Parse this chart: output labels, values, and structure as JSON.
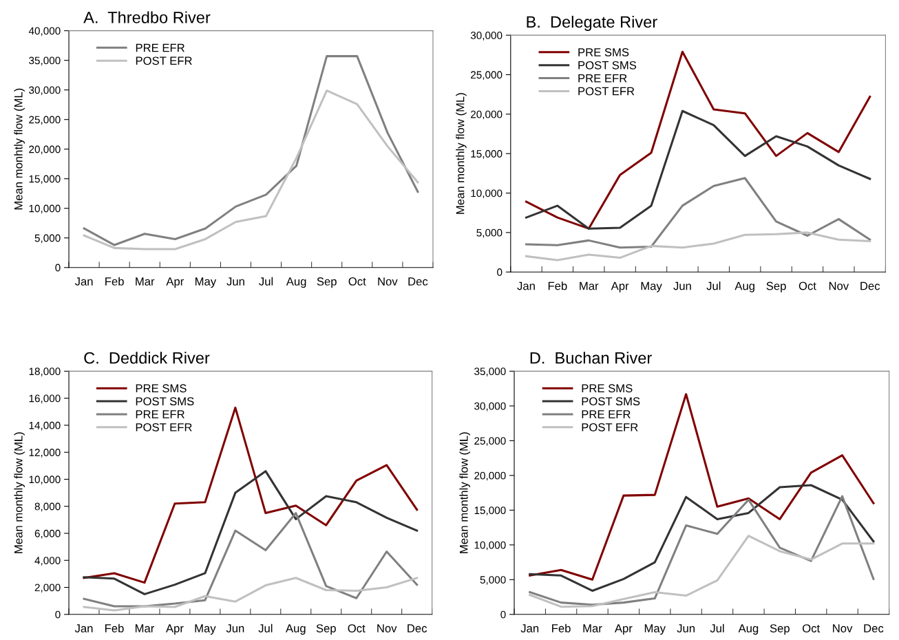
{
  "chart_data": [
    {
      "type": "line",
      "title": "A.  Thredbo River",
      "ylabel": "Mean monhtly flow (ML)",
      "categories": [
        "Jan",
        "Feb",
        "Mar",
        "Apr",
        "May",
        "Jun",
        "Jul",
        "Aug",
        "Sep",
        "Oct",
        "Nov",
        "Dec"
      ],
      "series": [
        {
          "name": "PRE EFR",
          "color": "#808080",
          "values": [
            6600,
            3800,
            5700,
            4800,
            6600,
            10300,
            12300,
            17200,
            35700,
            35700,
            22800,
            12800
          ]
        },
        {
          "name": "POST EFR",
          "color": "#c0c0c0",
          "values": [
            5400,
            3300,
            3100,
            3100,
            4800,
            7700,
            8700,
            18500,
            29900,
            27600,
            20500,
            14400
          ]
        }
      ],
      "ylim": [
        0,
        40000
      ],
      "yticks": [
        0,
        {
          "value": 5000,
          "label": "5,000"
        },
        {
          "value": 10000,
          "label": "10,000"
        },
        {
          "value": 15000,
          "label": "15,000"
        },
        {
          "value": 20000,
          "label": "20,000"
        },
        {
          "value": 25000,
          "label": "25,000"
        },
        {
          "value": 30000,
          "label": "30,000"
        },
        {
          "value": 35000,
          "label": "35,000"
        },
        {
          "value": 40000,
          "label": "40,000"
        }
      ],
      "grid": false,
      "legend": "top left",
      "marker": "none",
      "line_style": "solid"
    },
    {
      "type": "line",
      "title": "B.  Delegate River",
      "ylabel": "Mean monthly flow (ML)",
      "categories": [
        "Jan",
        "Feb",
        "Mar",
        "Apr",
        "May",
        "Jun",
        "Jul",
        "Aug",
        "Sep",
        "Oct",
        "Nov",
        "Dec"
      ],
      "series": [
        {
          "name": "PRE SMS",
          "color": "#800000",
          "values": [
            8900,
            6900,
            5500,
            12300,
            15100,
            27900,
            20600,
            20100,
            14700,
            17600,
            15200,
            22200
          ]
        },
        {
          "name": "POST SMS",
          "color": "#333333",
          "values": [
            6900,
            8400,
            5500,
            5600,
            8400,
            20400,
            18600,
            14700,
            17200,
            15900,
            13500,
            11800
          ]
        },
        {
          "name": "PRE EFR",
          "color": "#808080",
          "values": [
            3500,
            3400,
            4000,
            3100,
            3200,
            8400,
            10900,
            11900,
            6400,
            4600,
            6700,
            4100
          ]
        },
        {
          "name": "POST EFR",
          "color": "#c0c0c0",
          "values": [
            2000,
            1500,
            2200,
            1800,
            3300,
            3100,
            3600,
            4700,
            4800,
            5000,
            4100,
            3900
          ]
        }
      ],
      "ylim": [
        0,
        30000
      ],
      "yticks": [
        0,
        {
          "value": 5000,
          "label": "5,000"
        },
        {
          "value": 10000,
          "label": "10,000"
        },
        {
          "value": 15000,
          "label": "15,000"
        },
        {
          "value": 20000,
          "label": "20,000"
        },
        {
          "value": 25000,
          "label": "25,000"
        },
        {
          "value": 30000,
          "label": "30,000"
        }
      ],
      "grid": false,
      "legend": "top left",
      "marker": "none",
      "line_style": "solid"
    },
    {
      "type": "line",
      "title": "C.  Deddick River",
      "ylabel": "Mean monthly flow (ML)",
      "categories": [
        "Jan",
        "Feb",
        "Mar",
        "Apr",
        "May",
        "Jun",
        "Jul",
        "Aug",
        "Sep",
        "Oct",
        "Nov",
        "Dec"
      ],
      "series": [
        {
          "name": "PRE SMS",
          "color": "#800000",
          "values": [
            2700,
            3050,
            2350,
            8200,
            8300,
            15300,
            7500,
            8050,
            6600,
            9900,
            11050,
            7750
          ]
        },
        {
          "name": "POST SMS",
          "color": "#333333",
          "values": [
            2750,
            2650,
            1500,
            2200,
            3050,
            9000,
            10600,
            7050,
            8750,
            8300,
            7150,
            6200
          ]
        },
        {
          "name": "PRE EFR",
          "color": "#808080",
          "values": [
            1150,
            600,
            600,
            800,
            1050,
            6200,
            4750,
            7500,
            2100,
            1200,
            4650,
            2200
          ]
        },
        {
          "name": "POST EFR",
          "color": "#c0c0c0",
          "values": [
            550,
            300,
            600,
            550,
            1350,
            950,
            2150,
            2700,
            1800,
            1750,
            2000,
            2700
          ]
        }
      ],
      "ylim": [
        0,
        18000
      ],
      "yticks": [
        0,
        {
          "value": 2000,
          "label": "2,000"
        },
        {
          "value": 4000,
          "label": "4,000"
        },
        {
          "value": 6000,
          "label": "6,000"
        },
        {
          "value": 8000,
          "label": "8,000"
        },
        {
          "value": 10000,
          "label": "10,000"
        },
        {
          "value": 12000,
          "label": "12,000"
        },
        {
          "value": 14000,
          "label": "14,000"
        },
        {
          "value": 16000,
          "label": "16,000"
        },
        {
          "value": 18000,
          "label": "18,000"
        }
      ],
      "grid": false,
      "legend": "top left",
      "marker": "none",
      "line_style": "solid"
    },
    {
      "type": "line",
      "title": "D.  Buchan River",
      "ylabel": "Mean monthly flow (ML)",
      "categories": [
        "Jan",
        "Feb",
        "Mar",
        "Apr",
        "May",
        "Jun",
        "Jul",
        "Aug",
        "Sep",
        "Oct",
        "Nov",
        "Dec"
      ],
      "series": [
        {
          "name": "PRE SMS",
          "color": "#800000",
          "values": [
            5600,
            6400,
            5000,
            17100,
            17200,
            31700,
            15500,
            16700,
            13700,
            20400,
            22900,
            16000
          ]
        },
        {
          "name": "POST SMS",
          "color": "#333333",
          "values": [
            5800,
            5600,
            3400,
            5100,
            7500,
            16900,
            13700,
            14600,
            18300,
            18600,
            16500,
            10500
          ]
        },
        {
          "name": "PRE EFR",
          "color": "#808080",
          "values": [
            3200,
            1700,
            1400,
            1700,
            2300,
            12800,
            11600,
            16500,
            9600,
            7700,
            17000,
            5100
          ]
        },
        {
          "name": "POST EFR",
          "color": "#c0c0c0",
          "values": [
            2800,
            1100,
            1200,
            2200,
            3200,
            2700,
            4900,
            11300,
            9100,
            7900,
            10200,
            10200
          ]
        }
      ],
      "ylim": [
        0,
        35000
      ],
      "yticks": [
        0,
        {
          "value": 5000,
          "label": "5,000"
        },
        {
          "value": 10000,
          "label": "10,000"
        },
        {
          "value": 15000,
          "label": "15,000"
        },
        {
          "value": 20000,
          "label": "20,000"
        },
        {
          "value": 25000,
          "label": "25,000"
        },
        {
          "value": 30000,
          "label": "30,000"
        },
        {
          "value": 35000,
          "label": "35,000"
        }
      ],
      "grid": false,
      "legend": "top left",
      "marker": "none",
      "line_style": "solid"
    }
  ]
}
